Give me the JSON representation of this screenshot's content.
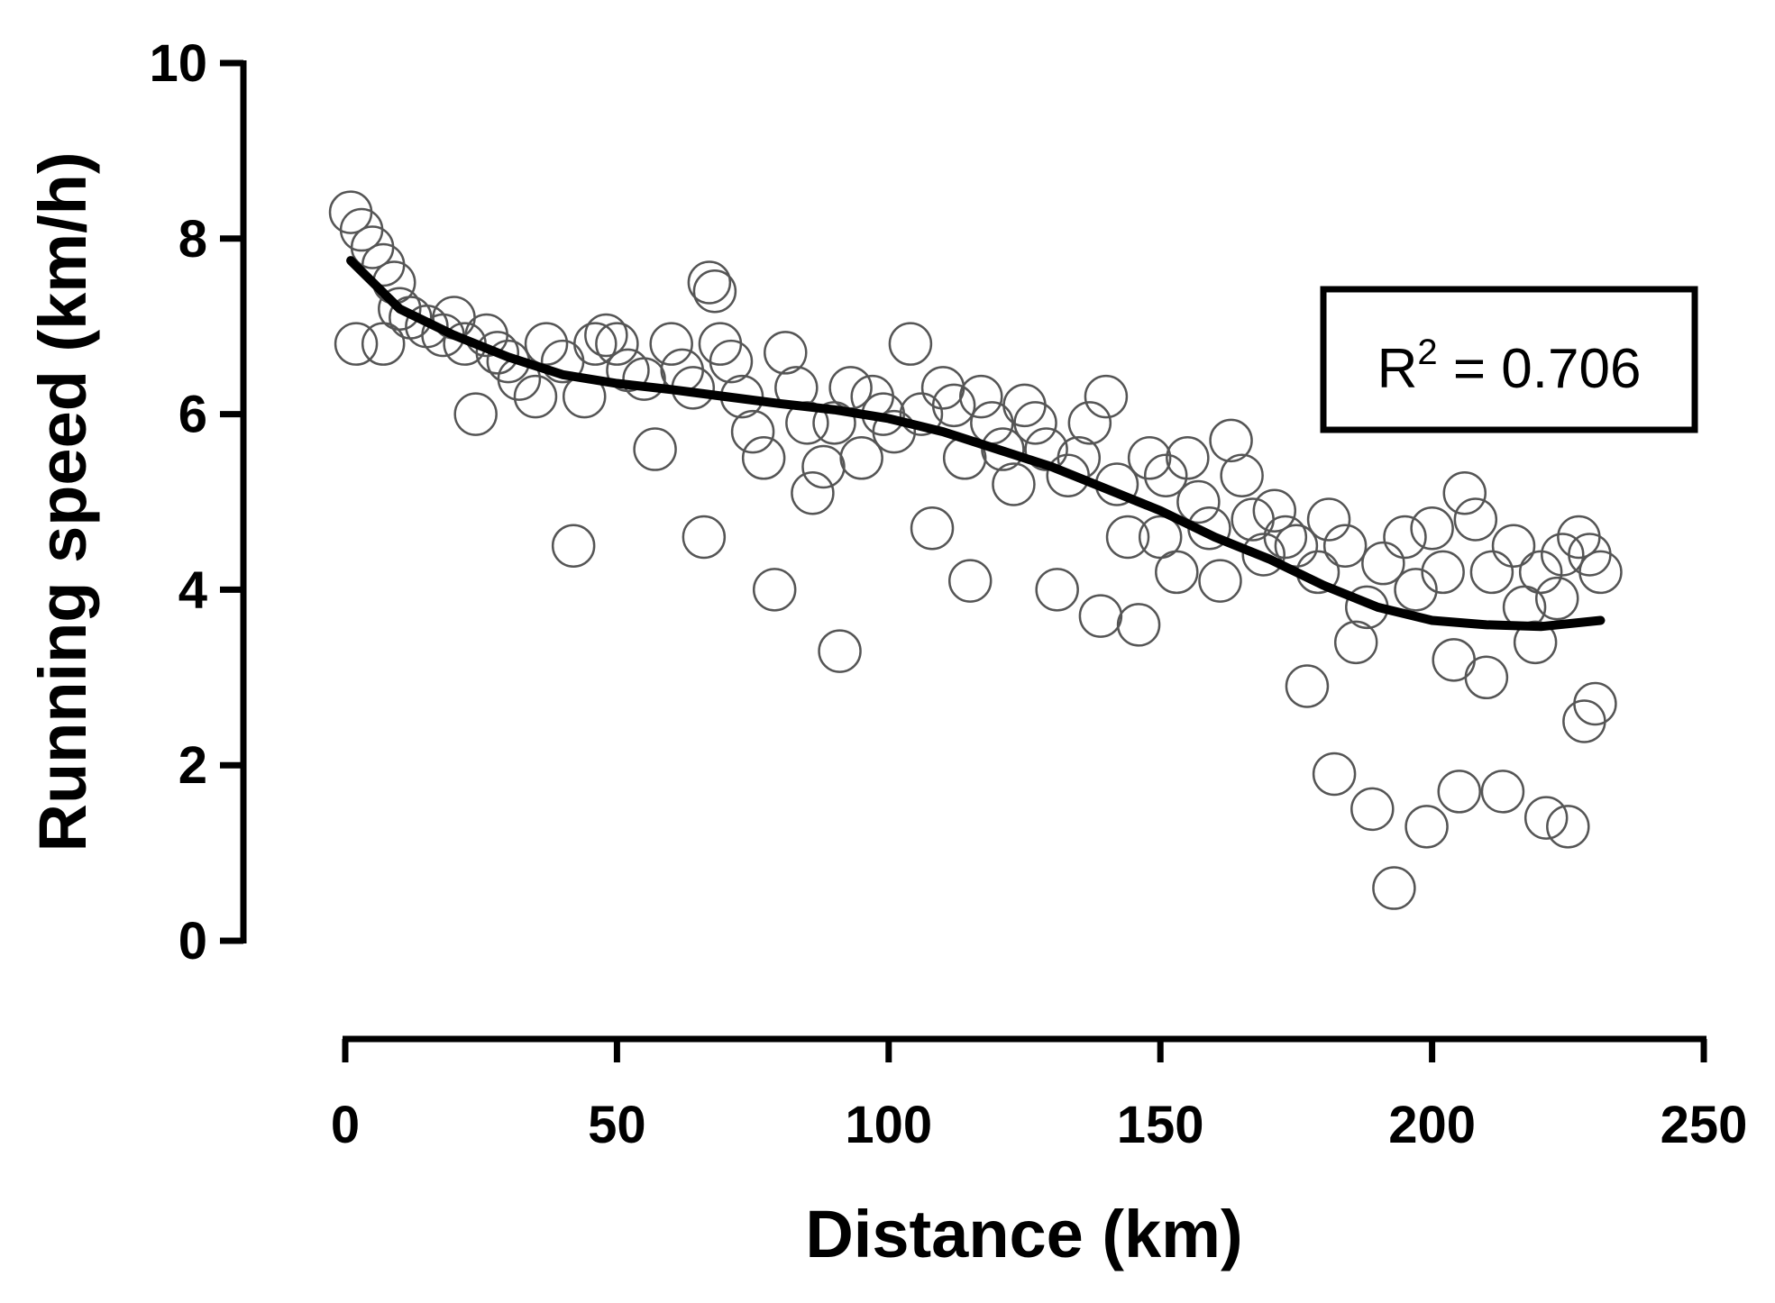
{
  "chart_data": {
    "type": "scatter",
    "x_label": "Distance (km)",
    "y_label": "Running speed (km/h)",
    "annotation": {
      "base": "R",
      "sup": "2",
      "rest": " = 0.706"
    },
    "xlim": [
      0,
      250
    ],
    "xticks": [
      0,
      50,
      100,
      150,
      200,
      250
    ],
    "ylim": [
      0,
      10
    ],
    "yticks": [
      0,
      2,
      4,
      6,
      8,
      10
    ],
    "series": [
      {
        "type": "scatter",
        "color": "#555555",
        "x": [
          1,
          3,
          5,
          7,
          9,
          2,
          7,
          10,
          12,
          15,
          18,
          20,
          22,
          24,
          26,
          28,
          30,
          32,
          35,
          37,
          40,
          42,
          44,
          46,
          48,
          50,
          52,
          55,
          57,
          60,
          62,
          64,
          66,
          67,
          68,
          69,
          71,
          73,
          75,
          77,
          79,
          81,
          83,
          85,
          86,
          88,
          90,
          91,
          93,
          95,
          97,
          99,
          101,
          104,
          106,
          108,
          110,
          112,
          114,
          115,
          117,
          119,
          121,
          123,
          125,
          127,
          129,
          131,
          133,
          135,
          137,
          139,
          140,
          142,
          144,
          146,
          148,
          150,
          151,
          153,
          155,
          157,
          159,
          161,
          163,
          165,
          167,
          169,
          171,
          173,
          175,
          177,
          179,
          181,
          182,
          184,
          186,
          188,
          189,
          191,
          193,
          195,
          197,
          199,
          200,
          202,
          204,
          205,
          206,
          208,
          210,
          211,
          213,
          215,
          217,
          219,
          220,
          221,
          223,
          224,
          225,
          227,
          228,
          229,
          230,
          231
        ],
        "values": [
          8.3,
          8.1,
          7.9,
          7.7,
          7.5,
          6.8,
          6.8,
          7.2,
          7.1,
          7.0,
          6.9,
          7.1,
          6.8,
          6.0,
          6.9,
          6.7,
          6.6,
          6.4,
          6.2,
          6.8,
          6.6,
          4.5,
          6.2,
          6.8,
          6.9,
          6.8,
          6.5,
          6.4,
          5.6,
          6.8,
          6.5,
          6.3,
          4.6,
          7.5,
          7.4,
          6.8,
          6.6,
          6.2,
          5.8,
          5.5,
          4.0,
          6.7,
          6.3,
          5.9,
          5.1,
          5.4,
          5.9,
          3.3,
          6.3,
          5.5,
          6.2,
          6.0,
          5.8,
          6.8,
          6.0,
          4.7,
          6.3,
          6.1,
          5.5,
          4.1,
          6.2,
          5.9,
          5.6,
          5.2,
          6.1,
          5.9,
          5.6,
          4.0,
          5.3,
          5.5,
          5.9,
          3.7,
          6.2,
          5.2,
          4.6,
          3.6,
          5.5,
          4.6,
          5.3,
          4.2,
          5.5,
          5.0,
          4.7,
          4.1,
          5.7,
          5.3,
          4.8,
          4.4,
          4.9,
          4.6,
          4.5,
          2.9,
          4.2,
          4.8,
          1.9,
          4.5,
          3.4,
          3.8,
          1.5,
          4.3,
          0.6,
          4.6,
          4.0,
          1.3,
          4.7,
          4.2,
          3.2,
          1.7,
          5.1,
          4.8,
          3.0,
          4.2,
          1.7,
          4.5,
          3.8,
          3.4,
          4.2,
          1.4,
          3.9,
          4.4,
          1.3,
          4.6,
          2.5,
          4.4,
          2.7,
          4.2
        ]
      },
      {
        "type": "line",
        "color": "#000000",
        "x": [
          1,
          10,
          20,
          30,
          40,
          50,
          60,
          70,
          80,
          90,
          100,
          110,
          120,
          130,
          140,
          150,
          160,
          170,
          180,
          190,
          200,
          210,
          220,
          231
        ],
        "values": [
          7.75,
          7.2,
          6.9,
          6.65,
          6.45,
          6.35,
          6.28,
          6.2,
          6.12,
          6.05,
          5.95,
          5.8,
          5.6,
          5.4,
          5.15,
          4.9,
          4.6,
          4.35,
          4.05,
          3.8,
          3.65,
          3.6,
          3.58,
          3.65
        ]
      }
    ]
  }
}
